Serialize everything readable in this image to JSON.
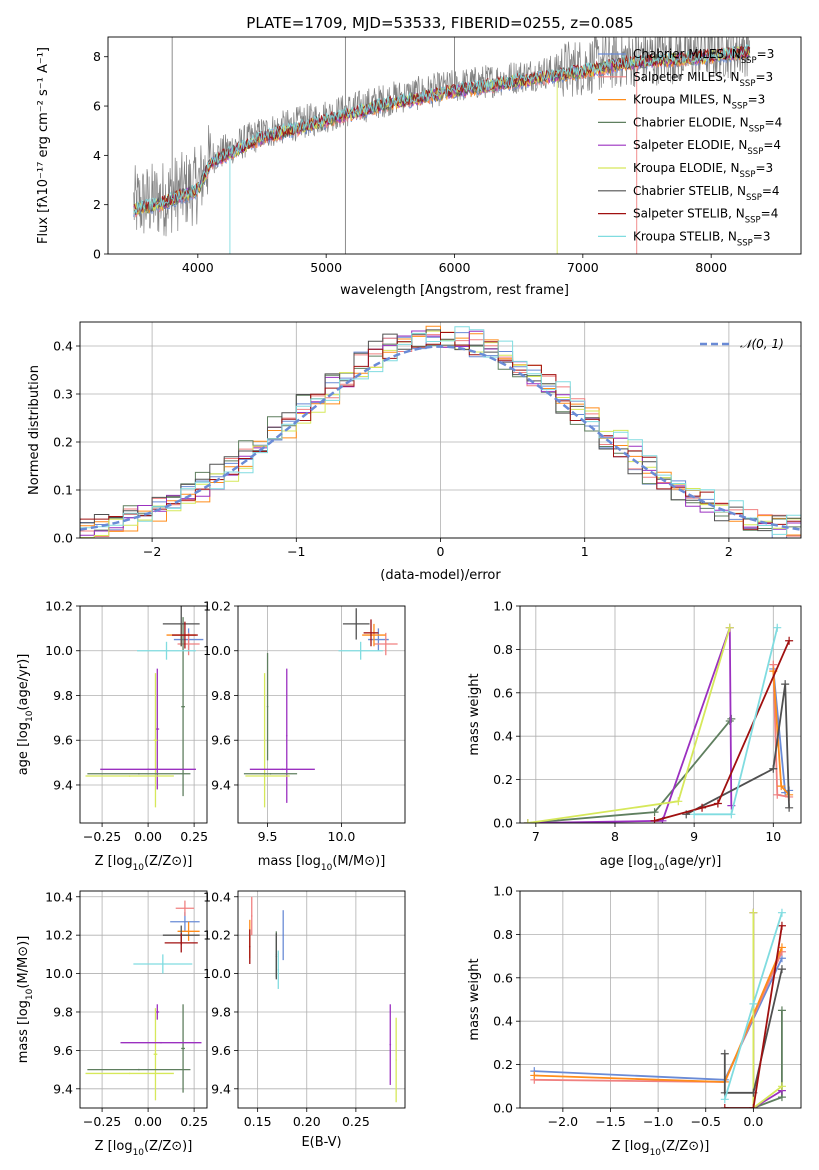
{
  "figure": {
    "title": "PLATE=1709, MJD=53533, FIBERID=0255, z=0.085"
  },
  "palette": {
    "chabrier_miles": "#6a8bd6",
    "salpeter_miles": "#f08080",
    "kroupa_miles": "#ff8c1a",
    "chabrier_elodie": "#5f7f5f",
    "salpeter_elodie": "#9b30c0",
    "kroupa_elodie": "#d6e85a",
    "chabrier_stelib": "#505050",
    "salpeter_stelib": "#a01010",
    "kroupa_stelib": "#80dce0",
    "normal": "#6a8bd6"
  },
  "legend_entries": [
    {
      "base": "Chabrier MILES, N",
      "sub": "SSP",
      "tail": "=3",
      "color": "#6a8bd6"
    },
    {
      "base": "Salpeter MILES, N",
      "sub": "SSP",
      "tail": "=3",
      "color": "#f08080"
    },
    {
      "base": "Kroupa MILES, N",
      "sub": "SSP",
      "tail": "=3",
      "color": "#ff8c1a"
    },
    {
      "base": "Chabrier ELODIE, N",
      "sub": "SSP",
      "tail": "=4",
      "color": "#5f7f5f"
    },
    {
      "base": "Salpeter ELODIE, N",
      "sub": "SSP",
      "tail": "=4",
      "color": "#9b30c0"
    },
    {
      "base": "Kroupa ELODIE, N",
      "sub": "SSP",
      "tail": "=3",
      "color": "#d6e85a"
    },
    {
      "base": "Chabrier STELIB, N",
      "sub": "SSP",
      "tail": "=4",
      "color": "#505050"
    },
    {
      "base": "Salpeter STELIB, N",
      "sub": "SSP",
      "tail": "=4",
      "color": "#a01010"
    },
    {
      "base": "Kroupa STELIB, N",
      "sub": "SSP",
      "tail": "=3",
      "color": "#80dce0"
    }
  ],
  "chart_data": [
    {
      "id": "spectrum",
      "type": "line",
      "title": "PLATE=1709, MJD=53533, FIBERID=0255, z=0.085",
      "xlabel": "wavelength [Angstrom, rest frame]",
      "ylabel": "Flux [fλ10⁻¹⁷ erg cm⁻² s⁻¹ A⁻¹]",
      "xlim": [
        3300,
        8700
      ],
      "ylim": [
        0,
        8.8
      ],
      "xticks": [
        4000,
        5000,
        6000,
        7000,
        8000
      ],
      "yticks": [
        0,
        2,
        4,
        6,
        8
      ],
      "grid": false,
      "legend": "right",
      "continuum": {
        "x": [
          3500,
          3700,
          4000,
          4100,
          4300,
          4500,
          5000,
          5500,
          6000,
          6500,
          7000,
          7300,
          7500,
          8000,
          8300
        ],
        "y": [
          2.0,
          2.2,
          2.8,
          3.9,
          4.4,
          4.9,
          5.6,
          6.3,
          6.8,
          7.2,
          7.6,
          7.9,
          8.0,
          8.2,
          8.4
        ]
      }
    },
    {
      "id": "residuals",
      "type": "line",
      "xlabel": "(data-model)/error",
      "ylabel": "Normed distribution",
      "xlim": [
        -2.5,
        2.5
      ],
      "ylim": [
        0,
        0.45
      ],
      "xticks": [
        -2,
        -1,
        0,
        1,
        2
      ],
      "yticks": [
        0.0,
        0.1,
        0.2,
        0.3,
        0.4
      ],
      "grid": true,
      "legend_label": "𝒩(0, 1)",
      "legend": "top-right",
      "normal": {
        "mean": 0,
        "sigma": 1
      }
    },
    {
      "id": "z-age",
      "type": "scatter",
      "xlabel_base": "Z [log",
      "xlabel_sub": "10",
      "xlabel_tail": "(Z/Z⊙)]",
      "ylabel_base": "age  [log",
      "ylabel_sub": "10",
      "ylabel_tail": "(age/yr)]",
      "xlim": [
        -0.37,
        0.32
      ],
      "ylim": [
        9.23,
        10.2
      ],
      "xticks": [
        -0.25,
        0.0,
        0.25
      ],
      "yticks": [
        9.4,
        9.6,
        9.8,
        10.0,
        10.2
      ],
      "series": [
        {
          "color": "#6a8bd6",
          "x": 0.22,
          "y": 10.05,
          "xerr": 0.08,
          "yerr": 0.05
        },
        {
          "color": "#f08080",
          "x": 0.22,
          "y": 10.03,
          "xerr": 0.06,
          "yerr": 0.05
        },
        {
          "color": "#ff8c1a",
          "x": 0.18,
          "y": 10.07,
          "xerr": 0.08,
          "yerr": 0.05
        },
        {
          "color": "#5f7f5f",
          "x": 0.19,
          "y": 9.75,
          "xerr": 0.01,
          "yerr": 0.4
        },
        {
          "color": "#9b30c0",
          "x": 0.05,
          "y": 9.65,
          "xerr": 0.01,
          "yerr": 0.27
        },
        {
          "color": "#d6e85a",
          "x": 0.04,
          "y": 9.6,
          "xerr": 0.01,
          "yerr": 0.3
        },
        {
          "color": "#505050",
          "x": 0.18,
          "y": 10.12,
          "xerr": 0.1,
          "yerr": 0.1
        },
        {
          "color": "#a01010",
          "x": 0.2,
          "y": 10.07,
          "xerr": 0.07,
          "yerr": 0.06
        },
        {
          "color": "#80dce0",
          "x": 0.1,
          "y": 10.0,
          "xerr": 0.16,
          "yerr": 0.04
        },
        {
          "color": "#9b30c0",
          "x": 0.0,
          "y": 9.47,
          "xerr": 0.26,
          "yerr": 0.0
        },
        {
          "color": "#5f7f5f",
          "x": -0.05,
          "y": 9.45,
          "xerr": 0.28,
          "yerr": 0.0
        },
        {
          "color": "#d6e85a",
          "x": -0.1,
          "y": 9.44,
          "xerr": 0.24,
          "yerr": 0.0
        }
      ]
    },
    {
      "id": "mass-age",
      "type": "scatter",
      "xlabel_base": "mass [log",
      "xlabel_sub": "10",
      "xlabel_tail": "(M/M⊙)]",
      "ylim": [
        9.23,
        10.2
      ],
      "xlim": [
        9.3,
        10.43
      ],
      "xticks": [
        9.5,
        10.0
      ],
      "yticks": [
        9.4,
        9.6,
        9.8,
        10.0,
        10.2
      ],
      "series": [
        {
          "color": "#6a8bd6",
          "x": 10.25,
          "y": 10.05,
          "xerr": 0.07,
          "yerr": 0.05
        },
        {
          "color": "#f08080",
          "x": 10.3,
          "y": 10.03,
          "xerr": 0.08,
          "yerr": 0.05
        },
        {
          "color": "#ff8c1a",
          "x": 10.22,
          "y": 10.07,
          "xerr": 0.08,
          "yerr": 0.05
        },
        {
          "color": "#5f7f5f",
          "x": 9.5,
          "y": 9.75,
          "xerr": 0.0,
          "yerr": 0.24
        },
        {
          "color": "#9b30c0",
          "x": 9.63,
          "y": 9.62,
          "xerr": 0.0,
          "yerr": 0.3
        },
        {
          "color": "#d6e85a",
          "x": 9.48,
          "y": 9.6,
          "xerr": 0.0,
          "yerr": 0.3
        },
        {
          "color": "#505050",
          "x": 10.1,
          "y": 10.12,
          "xerr": 0.09,
          "yerr": 0.07
        },
        {
          "color": "#a01010",
          "x": 10.2,
          "y": 10.08,
          "xerr": 0.05,
          "yerr": 0.06
        },
        {
          "color": "#80dce0",
          "x": 10.13,
          "y": 10.0,
          "xerr": 0.15,
          "yerr": 0.04
        },
        {
          "color": "#9b30c0",
          "x": 9.6,
          "y": 9.47,
          "xerr": 0.22,
          "yerr": 0.0
        },
        {
          "color": "#5f7f5f",
          "x": 9.52,
          "y": 9.45,
          "xerr": 0.18,
          "yerr": 0.0
        },
        {
          "color": "#d6e85a",
          "x": 9.5,
          "y": 9.44,
          "xerr": 0.15,
          "yerr": 0.0
        }
      ]
    },
    {
      "id": "age-weight",
      "type": "line",
      "xlabel_base": "age  [log",
      "xlabel_sub": "10",
      "xlabel_tail": "(age/yr)]",
      "ylabel": "mass weight",
      "xlim": [
        6.8,
        10.35
      ],
      "ylim": [
        0,
        1.0
      ],
      "xticks": [
        7,
        8,
        9,
        10
      ],
      "yticks": [
        0.0,
        0.2,
        0.4,
        0.6,
        0.8,
        1.0
      ],
      "series": [
        {
          "color": "#6a8bd6",
          "x": [
            10.0,
            10.15,
            10.2
          ],
          "y": [
            0.71,
            0.14,
            0.15
          ]
        },
        {
          "color": "#f08080",
          "x": [
            10.0,
            10.05,
            10.2
          ],
          "y": [
            0.73,
            0.13,
            0.12
          ]
        },
        {
          "color": "#ff8c1a",
          "x": [
            10.0,
            10.1,
            10.2
          ],
          "y": [
            0.7,
            0.17,
            0.13
          ]
        },
        {
          "color": "#5f7f5f",
          "x": [
            6.9,
            8.5,
            9.45,
            9.47
          ],
          "y": [
            0.0,
            0.05,
            0.47,
            0.48
          ]
        },
        {
          "color": "#9b30c0",
          "x": [
            6.9,
            8.6,
            9.45,
            9.47
          ],
          "y": [
            0.0,
            0.01,
            0.9,
            0.08
          ]
        },
        {
          "color": "#d6e85a",
          "x": [
            6.9,
            8.8,
            9.45
          ],
          "y": [
            0.0,
            0.1,
            0.9
          ]
        },
        {
          "color": "#505050",
          "x": [
            8.9,
            10.0,
            10.15,
            10.2
          ],
          "y": [
            0.04,
            0.25,
            0.64,
            0.07
          ]
        },
        {
          "color": "#a01010",
          "x": [
            8.5,
            9.1,
            9.3,
            10.2
          ],
          "y": [
            0.01,
            0.07,
            0.09,
            0.84
          ]
        },
        {
          "color": "#80dce0",
          "x": [
            9.0,
            9.47,
            10.05
          ],
          "y": [
            0.04,
            0.04,
            0.9
          ]
        }
      ]
    },
    {
      "id": "z-mass",
      "type": "scatter",
      "xlabel_base": "Z [log",
      "xlabel_sub": "10",
      "xlabel_tail": "(Z/Z⊙)]",
      "ylabel_base": "mass [log",
      "ylabel_sub": "10",
      "ylabel_tail": "(M/M⊙)]",
      "xlim": [
        -0.37,
        0.32
      ],
      "ylim": [
        9.3,
        10.43
      ],
      "xticks": [
        -0.25,
        0.0,
        0.25
      ],
      "yticks": [
        9.4,
        9.6,
        9.8,
        10.0,
        10.2,
        10.4
      ],
      "series": [
        {
          "color": "#6a8bd6",
          "x": 0.2,
          "y": 10.27,
          "xerr": 0.08,
          "yerr": 0.05
        },
        {
          "color": "#f08080",
          "x": 0.2,
          "y": 10.34,
          "xerr": 0.05,
          "yerr": 0.04
        },
        {
          "color": "#ff8c1a",
          "x": 0.22,
          "y": 10.22,
          "xerr": 0.06,
          "yerr": 0.05
        },
        {
          "color": "#5f7f5f",
          "x": 0.19,
          "y": 9.61,
          "xerr": 0.01,
          "yerr": 0.23
        },
        {
          "color": "#9b30c0",
          "x": 0.05,
          "y": 9.8,
          "xerr": 0.01,
          "yerr": 0.04
        },
        {
          "color": "#d6e85a",
          "x": 0.04,
          "y": 9.58,
          "xerr": 0.01,
          "yerr": 0.24
        },
        {
          "color": "#505050",
          "x": 0.18,
          "y": 10.2,
          "xerr": 0.1,
          "yerr": 0.05
        },
        {
          "color": "#a01010",
          "x": 0.18,
          "y": 10.16,
          "xerr": 0.09,
          "yerr": 0.05
        },
        {
          "color": "#80dce0",
          "x": 0.08,
          "y": 10.05,
          "xerr": 0.16,
          "yerr": 0.05
        },
        {
          "color": "#9b30c0",
          "x": 0.07,
          "y": 9.64,
          "xerr": 0.22,
          "yerr": 0.0
        },
        {
          "color": "#5f7f5f",
          "x": -0.05,
          "y": 9.5,
          "xerr": 0.28,
          "yerr": 0.0
        },
        {
          "color": "#d6e85a",
          "x": -0.1,
          "y": 9.48,
          "xerr": 0.24,
          "yerr": 0.0
        }
      ]
    },
    {
      "id": "ebv-mass",
      "type": "scatter",
      "xlabel": "E(B-V)",
      "xlim": [
        0.13,
        0.3
      ],
      "ylim": [
        9.3,
        10.43
      ],
      "xticks": [
        0.15,
        0.2,
        0.25
      ],
      "yticks": [
        9.4,
        9.6,
        9.8,
        10.0,
        10.2,
        10.4
      ],
      "series": [
        {
          "color": "#6a8bd6",
          "x": 0.176,
          "y": 10.2,
          "xerr": 0,
          "yerr": 0.13
        },
        {
          "color": "#f08080",
          "x": 0.144,
          "y": 10.3,
          "xerr": 0,
          "yerr": 0.1
        },
        {
          "color": "#ff8c1a",
          "x": 0.142,
          "y": 10.18,
          "xerr": 0,
          "yerr": 0.1
        },
        {
          "color": "#5f7f5f",
          "x": 0.169,
          "y": 10.1,
          "xerr": 0,
          "yerr": 0.12
        },
        {
          "color": "#9b30c0",
          "x": 0.285,
          "y": 9.63,
          "xerr": 0,
          "yerr": 0.21
        },
        {
          "color": "#d6e85a",
          "x": 0.291,
          "y": 9.55,
          "xerr": 0,
          "yerr": 0.22
        },
        {
          "color": "#505050",
          "x": 0.169,
          "y": 10.09,
          "xerr": 0,
          "yerr": 0.12
        },
        {
          "color": "#a01010",
          "x": 0.142,
          "y": 10.14,
          "xerr": 0,
          "yerr": 0.09
        },
        {
          "color": "#80dce0",
          "x": 0.171,
          "y": 10.02,
          "xerr": 0,
          "yerr": 0.1
        }
      ]
    },
    {
      "id": "z-weight",
      "type": "line",
      "xlabel_base": "Z [log",
      "xlabel_sub": "10",
      "xlabel_tail": "(Z/Z⊙)]",
      "ylabel": "mass weight",
      "xlim": [
        -2.45,
        0.5
      ],
      "ylim": [
        0,
        1.0
      ],
      "xticks": [
        -2.0,
        -1.5,
        -1.0,
        -0.5,
        0.0
      ],
      "yticks": [
        0.0,
        0.2,
        0.4,
        0.6,
        0.8,
        1.0
      ],
      "series": [
        {
          "color": "#6a8bd6",
          "x": [
            -2.3,
            -0.3,
            0.3
          ],
          "y": [
            0.17,
            0.13,
            0.69
          ]
        },
        {
          "color": "#f08080",
          "x": [
            -2.3,
            -0.3,
            0.3
          ],
          "y": [
            0.13,
            0.12,
            0.72
          ]
        },
        {
          "color": "#ff8c1a",
          "x": [
            -2.3,
            -0.3,
            0.3
          ],
          "y": [
            0.15,
            0.12,
            0.74
          ]
        },
        {
          "color": "#5f7f5f",
          "x": [
            0.0,
            0.3,
            0.3
          ],
          "y": [
            0.0,
            0.05,
            0.45
          ]
        },
        {
          "color": "#9b30c0",
          "x": [
            0.0,
            0.0,
            0.3
          ],
          "y": [
            0.9,
            0.0,
            0.08
          ]
        },
        {
          "color": "#d6e85a",
          "x": [
            0.0,
            0.0,
            0.3
          ],
          "y": [
            0.9,
            0.0,
            0.1
          ]
        },
        {
          "color": "#505050",
          "x": [
            -0.3,
            -0.3,
            0.0,
            0.3
          ],
          "y": [
            0.25,
            0.07,
            0.07,
            0.64
          ]
        },
        {
          "color": "#a01010",
          "x": [
            -0.3,
            0.0,
            0.3
          ],
          "y": [
            0.0,
            0.0,
            0.84
          ]
        },
        {
          "color": "#80dce0",
          "x": [
            -0.3,
            0.0,
            0.3
          ],
          "y": [
            0.04,
            0.48,
            0.9
          ]
        }
      ]
    }
  ]
}
